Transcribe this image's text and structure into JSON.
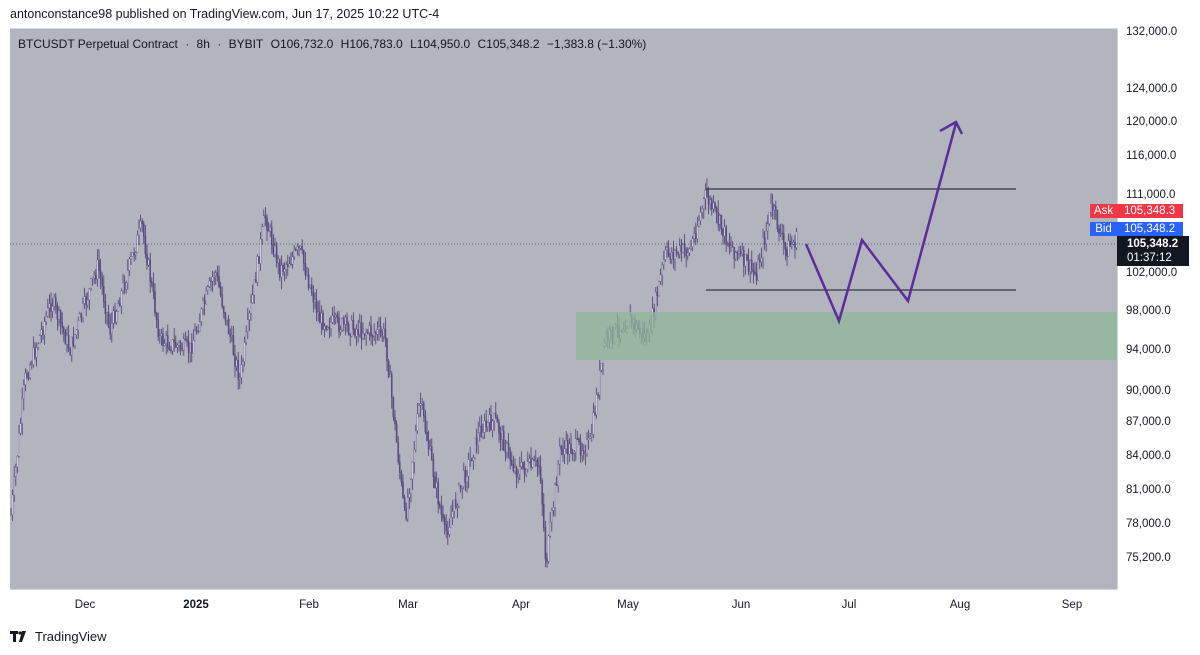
{
  "header": {
    "published_text": "antonconstance98 published on TradingView.com, Jun 17, 2025 10:22 UTC-4"
  },
  "symbol": {
    "name": "BTCUSDT Perpetual Contract",
    "interval": "8h",
    "exchange": "BYBIT",
    "open": "O106,732.0",
    "high": "H106,783.0",
    "low": "L104,950.0",
    "close": "C105,348.2",
    "change": "−1,383.8 (−1.30%)",
    "separator": "·"
  },
  "price_axis": {
    "labels": [
      "132,000.0",
      "124,000.0",
      "120,000.0",
      "116,000.0",
      "111,000.0",
      "102,000.0",
      "98,000.0",
      "94,000.0",
      "90,000.0",
      "87,000.0",
      "84,000.0",
      "81,000.0",
      "78,000.0",
      "75,200.0"
    ]
  },
  "time_axis": {
    "labels": [
      "Dec",
      "2025",
      "Feb",
      "Mar",
      "Apr",
      "May",
      "Jun",
      "Jul",
      "Aug",
      "Sep"
    ]
  },
  "quotes": {
    "ask_label": "Ask",
    "ask_value": "105,348.3",
    "bid_label": "Bid",
    "bid_value": "105,348.2",
    "last_price": "105,348.2",
    "countdown": "01:37:12"
  },
  "colors": {
    "chart_bg": "#b2b5be",
    "candle": "#5b4a8a",
    "projection": "#5b2d9c",
    "zone": "#8fb89a",
    "ask": "#f23645",
    "bid": "#2962ff"
  },
  "footer": {
    "brand": "TradingView",
    "logo_icon": "tradingview-logo-icon"
  }
}
